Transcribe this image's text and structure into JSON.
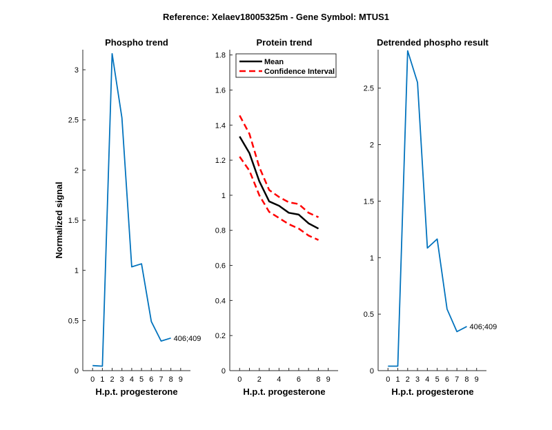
{
  "suptitle": "Reference:  Xelaev18005325m - Gene Symbol:  MTUS1",
  "chart_data": [
    {
      "type": "line",
      "title": "Phospho trend",
      "xlabel": "H.p.t. progesterone",
      "ylabel": "Normalized signal",
      "x": [
        0,
        1,
        2,
        3,
        4,
        5,
        6,
        7,
        8,
        9
      ],
      "xticks": [
        "0",
        "1",
        "2",
        "3",
        "4",
        "5",
        "6",
        "7",
        "8",
        "9"
      ],
      "xlim": [
        -1,
        10
      ],
      "ylim": [
        0,
        3.2
      ],
      "yticks": [
        "0",
        "0.5",
        "1",
        "1.5",
        "2",
        "2.5",
        "3"
      ],
      "series": [
        {
          "values": [
            0.05,
            0.045,
            3.16,
            2.52,
            1.035,
            1.065,
            0.49,
            0.295,
            0.325
          ],
          "x": [
            0,
            1,
            2,
            3,
            4,
            5,
            6,
            7,
            8
          ],
          "color": "#0072BD"
        }
      ],
      "annotation": "406;409"
    },
    {
      "type": "line",
      "title": "Protein trend",
      "xlabel": "H.p.t. progesterone",
      "ylabel": "",
      "x": [
        0,
        1,
        2,
        3,
        4,
        5,
        6,
        7,
        8,
        9
      ],
      "xticks": [
        "0",
        "2",
        "4",
        "6",
        "8",
        "9"
      ],
      "xtick_values": [
        0,
        2,
        4,
        6,
        8,
        9
      ],
      "xticks_all": [
        "0",
        "1",
        "2",
        "3",
        "4",
        "5",
        "6",
        "7",
        "8",
        "9"
      ],
      "xlim": [
        -1,
        10
      ],
      "ylim": [
        0,
        1.83
      ],
      "yticks": [
        "0",
        "0.2",
        "0.4",
        "0.6",
        "0.8",
        "1",
        "1.2",
        "1.4",
        "1.6",
        "1.8"
      ],
      "series": [
        {
          "name": "Mean",
          "values": [
            1.335,
            1.24,
            1.08,
            0.965,
            0.94,
            0.9,
            0.89,
            0.84,
            0.81
          ],
          "x": [
            0,
            1,
            2,
            3,
            4,
            5,
            6,
            7,
            8
          ],
          "color": "#000000"
        },
        {
          "name": "Confidence Interval",
          "values": [
            1.455,
            1.35,
            1.16,
            1.03,
            0.99,
            0.96,
            0.95,
            0.9,
            0.875
          ],
          "x": [
            0,
            1,
            2,
            3,
            4,
            5,
            6,
            7,
            8
          ],
          "color": "#FF0000"
        },
        {
          "name": "Confidence Interval",
          "values": [
            1.22,
            1.14,
            1.0,
            0.905,
            0.87,
            0.835,
            0.81,
            0.77,
            0.745
          ],
          "x": [
            0,
            1,
            2,
            3,
            4,
            5,
            6,
            7,
            8
          ],
          "color": "#FF0000"
        }
      ],
      "legend": {
        "placement": "top-left",
        "entries": [
          "Mean",
          "Confidence Interval"
        ]
      }
    },
    {
      "type": "line",
      "title": "Detrended phospho result",
      "xlabel": "H.p.t. progesterone",
      "ylabel": "",
      "x": [
        0,
        1,
        2,
        3,
        4,
        5,
        6,
        7,
        8,
        9
      ],
      "xticks": [
        "0",
        "1",
        "2",
        "3",
        "4",
        "5",
        "6",
        "7",
        "8",
        "9"
      ],
      "xlim": [
        -1,
        10
      ],
      "ylim": [
        0,
        2.84
      ],
      "yticks": [
        "0",
        "0.5",
        "1",
        "1.5",
        "2",
        "2.5"
      ],
      "series": [
        {
          "values": [
            0.04,
            0.04,
            2.83,
            2.55,
            1.085,
            1.165,
            0.545,
            0.345,
            0.39
          ],
          "x": [
            0,
            1,
            2,
            3,
            4,
            5,
            6,
            7,
            8
          ],
          "color": "#0072BD"
        }
      ],
      "annotation": "406;409"
    }
  ]
}
